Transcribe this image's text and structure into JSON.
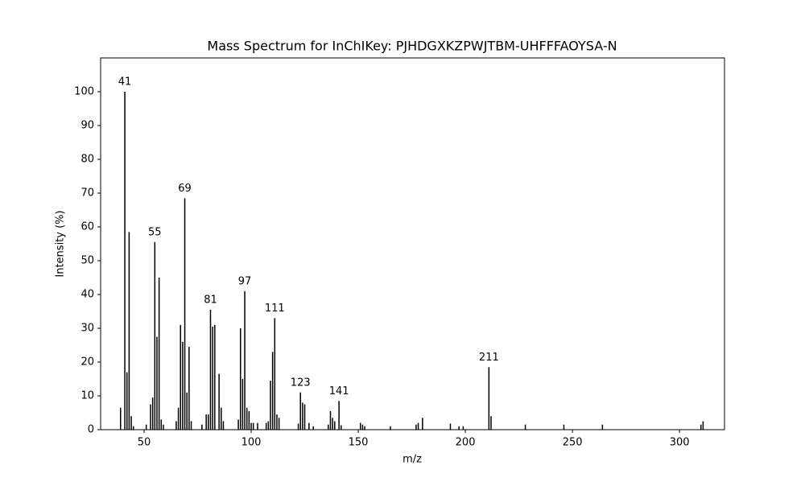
{
  "chart_data": {
    "type": "stem",
    "title": "Mass Spectrum for InChIKey: PJHDGXKZPWJTBM-UHFFFAOYSA-N",
    "xlabel": "m/z",
    "ylabel": "Intensity (%)",
    "x": [
      39,
      41,
      42,
      43,
      44,
      45,
      51,
      53,
      54,
      55,
      56,
      57,
      58,
      59,
      65,
      66,
      67,
      68,
      69,
      70,
      71,
      72,
      77,
      79,
      80,
      81,
      82,
      83,
      85,
      86,
      87,
      94,
      95,
      96,
      97,
      98,
      99,
      100,
      101,
      103,
      107,
      108,
      109,
      110,
      111,
      112,
      113,
      122,
      123,
      124,
      125,
      127,
      129,
      136,
      137,
      138,
      139,
      141,
      142,
      151,
      152,
      153,
      165,
      177,
      178,
      180,
      193,
      197,
      199,
      211,
      212,
      228,
      246,
      264,
      310,
      311
    ],
    "values": [
      6.5,
      100,
      17,
      58.5,
      4,
      1,
      1.5,
      7.5,
      9.5,
      55.5,
      27.5,
      45,
      3,
      1.5,
      2.5,
      6.5,
      31,
      26,
      68.5,
      11,
      24.5,
      2.5,
      1.5,
      4.5,
      4.5,
      35.5,
      30.5,
      31,
      16.5,
      6.5,
      2.5,
      3,
      30,
      15,
      41,
      6.5,
      5.5,
      2,
      2,
      2,
      2,
      2.5,
      14.5,
      23,
      33,
      4.5,
      3.5,
      1.8,
      11,
      8,
      7.5,
      2,
      1,
      1.5,
      5.5,
      3.5,
      2.5,
      8.5,
      1.3,
      2,
      1.5,
      1,
      1,
      1.5,
      2,
      3.5,
      1.8,
      1,
      1,
      18.5,
      4,
      1.5,
      1.5,
      1.5,
      1.5,
      2.5
    ],
    "peak_labels": [
      41,
      55,
      69,
      81,
      97,
      111,
      123,
      141,
      211
    ],
    "color": "#000000",
    "xlim": [
      29.7,
      321
    ],
    "ylim": [
      0,
      110
    ],
    "xticks": [
      50,
      100,
      150,
      200,
      250,
      300
    ],
    "yticks": [
      0,
      10,
      20,
      30,
      40,
      50,
      60,
      70,
      80,
      90,
      100
    ]
  }
}
